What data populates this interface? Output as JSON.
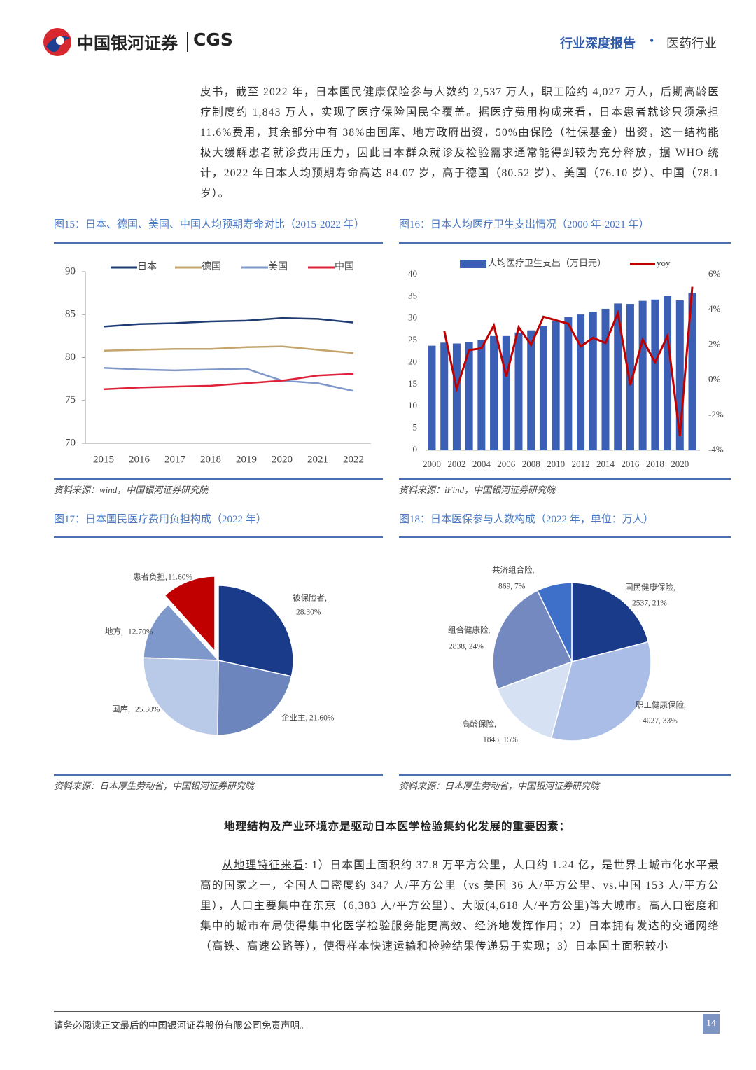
{
  "header": {
    "logo": "中国银河证券",
    "logo_en": "CGS",
    "report_type": "行业深度报告",
    "separator": "•",
    "industry": "医药行业"
  },
  "intro": "皮书，截至 2022 年，日本国民健康保险参与人数约 2,537 万人，职工险约 4,027 万人，后期高龄医疗制度约 1,843 万人，实现了医疗保险国民全覆盖。据医疗费用构成来看，日本患者就诊只须承担 11.6%费用，其余部分中有 38%由国库、地方政府出资，50%由保险（社保基金）出资，这一结构能极大缓解患者就诊费用压力，因此日本群众就诊及检验需求通常能得到较为充分释放，据 WHO 统计，2022 年日本人均预期寿命高达 84.07 岁，高于德国（80.52 岁）、美国（76.10 岁）、中国（78.1 岁）。",
  "figures": [
    {
      "caption": "图15：日本、德国、美国、中国人均预期寿命对比（2015-2022 年）",
      "source": "资料来源：wind，中国银河证券研究院"
    },
    {
      "caption": "图16：日本人均医疗卫生支出情况（2000 年-2021 年）",
      "source": "资料来源：iFind，中国银河证券研究院"
    },
    {
      "caption": "图17：日本国民医疗费用负担构成（2022 年）",
      "source": "资料来源：日本厚生劳动省，中国银河证券研究院"
    },
    {
      "caption": "图18：日本医保参与人数构成（2022 年，单位：万人）",
      "source": "资料来源：日本厚生劳动省，中国银河证券研究院"
    }
  ],
  "chart_data": [
    {
      "type": "line",
      "categories": [
        "2015",
        "2016",
        "2017",
        "2018",
        "2019",
        "2020",
        "2021",
        "2022"
      ],
      "series": [
        {
          "name": "日本",
          "color": "#1f3b73",
          "values": [
            83.6,
            83.9,
            84.0,
            84.2,
            84.3,
            84.6,
            84.5,
            84.07
          ]
        },
        {
          "name": "德国",
          "color": "#c4a46a",
          "values": [
            80.8,
            80.9,
            81.0,
            81.0,
            81.2,
            81.3,
            80.9,
            80.52
          ]
        },
        {
          "name": "美国",
          "color": "#7f97c9",
          "values": [
            78.8,
            78.6,
            78.5,
            78.6,
            78.7,
            77.3,
            77.0,
            76.1
          ]
        },
        {
          "name": "中国",
          "color": "#e0213a",
          "values": [
            76.3,
            76.5,
            76.6,
            76.7,
            77.0,
            77.3,
            77.9,
            78.1
          ]
        }
      ],
      "ylim": [
        70,
        90
      ],
      "yticks": [
        70,
        75,
        80,
        85,
        90
      ],
      "legend": "top"
    },
    {
      "type": "bar_line",
      "categories": [
        "2000",
        null,
        "2002",
        null,
        "2004",
        null,
        "2006",
        null,
        "2008",
        null,
        "2010",
        null,
        "2012",
        null,
        "2014",
        null,
        "2016",
        null,
        "2018",
        null,
        "2020",
        null
      ],
      "series": [
        {
          "name": "人均医疗卫生支出（万日元）",
          "type": "bar",
          "color": "#3a5fb4",
          "values": [
            23.8,
            24.5,
            24.3,
            24.7,
            25.1,
            26.0,
            26.0,
            26.8,
            27.3,
            28.3,
            29.4,
            30.3,
            30.9,
            31.5,
            32.2,
            33.4,
            33.3,
            34.0,
            34.3,
            35.1,
            34.1,
            35.8
          ]
        },
        {
          "name": "yoy",
          "type": "line",
          "axis": "y2",
          "color": "#c00000",
          "values": [
            null,
            2.8,
            -0.5,
            1.7,
            1.8,
            3.1,
            0.2,
            3.0,
            2.0,
            3.6,
            3.4,
            3.2,
            1.9,
            2.4,
            2.1,
            3.8,
            -0.3,
            2.3,
            1.0,
            2.5,
            -3.2,
            5.3
          ]
        }
      ],
      "ylim": [
        0,
        40
      ],
      "yticks": [
        0,
        5,
        10,
        15,
        20,
        25,
        30,
        35,
        40
      ],
      "y2lim": [
        -4,
        6
      ],
      "y2ticks": [
        {
          "value": -4,
          "label": "-4%"
        },
        {
          "value": -2,
          "label": "-2%"
        },
        {
          "value": 0,
          "label": "0%"
        },
        {
          "value": 2,
          "label": "2%"
        },
        {
          "value": 4,
          "label": "4%"
        },
        {
          "value": 6,
          "label": "6%"
        }
      ],
      "legend": "top"
    },
    {
      "type": "pie",
      "categories": [
        "被保险者,",
        "企业主,",
        "国库,",
        "地方,",
        "患者负担,"
      ],
      "values": [
        28.3,
        21.6,
        25.3,
        12.7,
        11.6
      ],
      "value_labels": [
        "28.30%",
        "21.60%",
        "25.30%",
        "12.70%",
        "11.60%"
      ],
      "colors": [
        "#1a3a8a",
        "#6c85bd",
        "#b9c9e8",
        "#7e98cc",
        "#c00000"
      ],
      "explode": [
        false,
        false,
        false,
        false,
        true
      ]
    },
    {
      "type": "pie",
      "categories": [
        "国民健康保险,",
        "职工健康保险,",
        "高龄保险,",
        "组合健康险,",
        "共济组合险,"
      ],
      "values": [
        2537,
        4027,
        1843,
        2838,
        869
      ],
      "value_labels": [
        "2537, 21%",
        "4027, 33%",
        "1843, 15%",
        "2838, 24%",
        "869, 7%"
      ],
      "colors": [
        "#1a3a8a",
        "#a9bde6",
        "#d6e2f4",
        "#7389bf",
        "#3e70c9"
      ],
      "explode": [
        false,
        false,
        false,
        false,
        false
      ]
    }
  ],
  "section_heading": "地理结构及产业环境亦是驱动日本医学检验集约化发展的重要因素：",
  "body": {
    "lead": "从地理特征来看",
    "text": ": 1）日本国土面积约 37.8 万平方公里，人口约 1.24 亿，是世界上城市化水平最高的国家之一，全国人口密度约 347 人/平方公里（vs 美国 36 人/平方公里、vs.中国 153 人/平方公里），人口主要集中在东京（6,383 人/平方公里）、大阪(4,618 人/平方公里)等大城市。高人口密度和集中的城市布局使得集中化医学检验服务能更高效、经济地发挥作用；2）日本拥有发达的交通网络（高铁、高速公路等），使得样本快速运输和检验结果传递易于实现；3）日本国土面积较小"
  },
  "footer": {
    "disclaimer": "请务必阅读正文最后的中国银河证券股份有限公司免责声明。",
    "page": "14"
  }
}
